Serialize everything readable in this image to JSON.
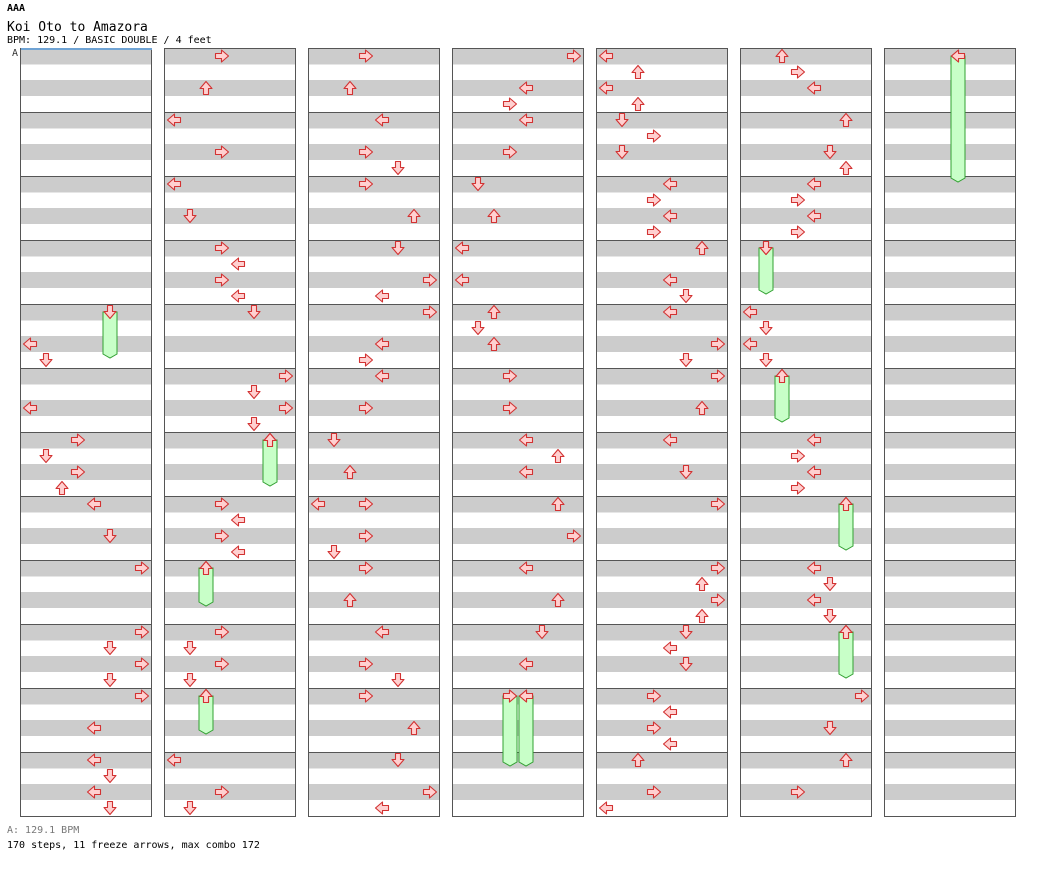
{
  "header": {
    "artist": "AAA",
    "title": "Koi Oto to Amazora",
    "info": "BPM: 129.1 / BASIC DOUBLE / 4 feet"
  },
  "bpm_marker": "A",
  "footer": {
    "bpm_line": "A: 129.1 BPM",
    "stats": "170 steps, 11 freeze arrows, max combo 172"
  },
  "colors": {
    "arrow_fill": "#ffd0d0",
    "arrow_stroke": "#d23232",
    "freeze_fill": "#c8ffc8",
    "freeze_stroke": "#32a032",
    "stripe_gray": "#cccccc",
    "measure_border": "#555555"
  },
  "chart": {
    "columns": 7,
    "measures_per_column": 12,
    "lanes": 8,
    "lane_arrows": [
      "left",
      "down",
      "up",
      "right",
      "left",
      "down",
      "up",
      "right"
    ],
    "notes": [
      {
        "c": 0,
        "b": 18,
        "l": 0
      },
      {
        "c": 0,
        "b": 19,
        "l": 1
      },
      {
        "c": 0,
        "b": 22,
        "l": 0
      },
      {
        "c": 0,
        "b": 24,
        "l": 3
      },
      {
        "c": 0,
        "b": 25,
        "l": 1
      },
      {
        "c": 0,
        "b": 26,
        "l": 3
      },
      {
        "c": 0,
        "b": 27,
        "l": 2
      },
      {
        "c": 0,
        "b": 28,
        "l": 4
      },
      {
        "c": 0,
        "b": 30,
        "l": 5
      },
      {
        "c": 0,
        "b": 32,
        "l": 7
      },
      {
        "c": 0,
        "b": 36,
        "l": 7
      },
      {
        "c": 0,
        "b": 37,
        "l": 5
      },
      {
        "c": 0,
        "b": 38,
        "l": 7
      },
      {
        "c": 0,
        "b": 39,
        "l": 5
      },
      {
        "c": 0,
        "b": 40,
        "l": 7
      },
      {
        "c": 0,
        "b": 42,
        "l": 4
      },
      {
        "c": 0,
        "b": 44,
        "l": 4
      },
      {
        "c": 0,
        "b": 45,
        "l": 5
      },
      {
        "c": 0,
        "b": 46,
        "l": 4
      },
      {
        "c": 0,
        "b": 47,
        "l": 5
      },
      {
        "c": 1,
        "b": 0,
        "l": 3
      },
      {
        "c": 1,
        "b": 2,
        "l": 2
      },
      {
        "c": 1,
        "b": 4,
        "l": 0
      },
      {
        "c": 1,
        "b": 6,
        "l": 3
      },
      {
        "c": 1,
        "b": 8,
        "l": 0
      },
      {
        "c": 1,
        "b": 10,
        "l": 1
      },
      {
        "c": 1,
        "b": 12,
        "l": 3
      },
      {
        "c": 1,
        "b": 13,
        "l": 4
      },
      {
        "c": 1,
        "b": 14,
        "l": 3
      },
      {
        "c": 1,
        "b": 15,
        "l": 4
      },
      {
        "c": 1,
        "b": 16,
        "l": 5
      },
      {
        "c": 1,
        "b": 20,
        "l": 7
      },
      {
        "c": 1,
        "b": 21,
        "l": 5
      },
      {
        "c": 1,
        "b": 22,
        "l": 7
      },
      {
        "c": 1,
        "b": 23,
        "l": 5
      },
      {
        "c": 1,
        "b": 24,
        "l": 6
      },
      {
        "c": 1,
        "b": 28,
        "l": 3
      },
      {
        "c": 1,
        "b": 29,
        "l": 4
      },
      {
        "c": 1,
        "b": 30,
        "l": 3
      },
      {
        "c": 1,
        "b": 31,
        "l": 4
      },
      {
        "c": 1,
        "b": 32,
        "l": 2
      },
      {
        "c": 1,
        "b": 36,
        "l": 3
      },
      {
        "c": 1,
        "b": 37,
        "l": 1
      },
      {
        "c": 1,
        "b": 38,
        "l": 3
      },
      {
        "c": 1,
        "b": 39,
        "l": 1
      },
      {
        "c": 1,
        "b": 40,
        "l": 2
      },
      {
        "c": 1,
        "b": 44,
        "l": 0
      },
      {
        "c": 1,
        "b": 46,
        "l": 3
      },
      {
        "c": 1,
        "b": 47,
        "l": 1
      },
      {
        "c": 2,
        "b": 0,
        "l": 3
      },
      {
        "c": 2,
        "b": 2,
        "l": 2
      },
      {
        "c": 2,
        "b": 4,
        "l": 4
      },
      {
        "c": 2,
        "b": 6,
        "l": 3
      },
      {
        "c": 2,
        "b": 7,
        "l": 5
      },
      {
        "c": 2,
        "b": 8,
        "l": 3
      },
      {
        "c": 2,
        "b": 10,
        "l": 6
      },
      {
        "c": 2,
        "b": 12,
        "l": 5
      },
      {
        "c": 2,
        "b": 14,
        "l": 7
      },
      {
        "c": 2,
        "b": 15,
        "l": 4
      },
      {
        "c": 2,
        "b": 16,
        "l": 7
      },
      {
        "c": 2,
        "b": 18,
        "l": 4
      },
      {
        "c": 2,
        "b": 19,
        "l": 3
      },
      {
        "c": 2,
        "b": 20,
        "l": 4
      },
      {
        "c": 2,
        "b": 22,
        "l": 3
      },
      {
        "c": 2,
        "b": 24,
        "l": 1
      },
      {
        "c": 2,
        "b": 26,
        "l": 2
      },
      {
        "c": 2,
        "b": 28,
        "l": 0
      },
      {
        "c": 2,
        "b": 28,
        "l": 3
      },
      {
        "c": 2,
        "b": 30,
        "l": 3
      },
      {
        "c": 2,
        "b": 31,
        "l": 1
      },
      {
        "c": 2,
        "b": 32,
        "l": 3
      },
      {
        "c": 2,
        "b": 34,
        "l": 2
      },
      {
        "c": 2,
        "b": 36,
        "l": 4
      },
      {
        "c": 2,
        "b": 38,
        "l": 3
      },
      {
        "c": 2,
        "b": 39,
        "l": 5
      },
      {
        "c": 2,
        "b": 40,
        "l": 3
      },
      {
        "c": 2,
        "b": 42,
        "l": 6
      },
      {
        "c": 2,
        "b": 44,
        "l": 5
      },
      {
        "c": 2,
        "b": 46,
        "l": 7
      },
      {
        "c": 2,
        "b": 47,
        "l": 4
      },
      {
        "c": 3,
        "b": 0,
        "l": 7
      },
      {
        "c": 3,
        "b": 2,
        "l": 4
      },
      {
        "c": 3,
        "b": 3,
        "l": 3
      },
      {
        "c": 3,
        "b": 4,
        "l": 4
      },
      {
        "c": 3,
        "b": 6,
        "l": 3
      },
      {
        "c": 3,
        "b": 8,
        "l": 1
      },
      {
        "c": 3,
        "b": 10,
        "l": 2
      },
      {
        "c": 3,
        "b": 12,
        "l": 0
      },
      {
        "c": 3,
        "b": 14,
        "l": 0
      },
      {
        "c": 3,
        "b": 16,
        "l": 2
      },
      {
        "c": 3,
        "b": 17,
        "l": 1
      },
      {
        "c": 3,
        "b": 18,
        "l": 2
      },
      {
        "c": 3,
        "b": 20,
        "l": 3
      },
      {
        "c": 3,
        "b": 22,
        "l": 3
      },
      {
        "c": 3,
        "b": 24,
        "l": 4
      },
      {
        "c": 3,
        "b": 25,
        "l": 6
      },
      {
        "c": 3,
        "b": 26,
        "l": 4
      },
      {
        "c": 3,
        "b": 28,
        "l": 6
      },
      {
        "c": 3,
        "b": 30,
        "l": 7
      },
      {
        "c": 3,
        "b": 32,
        "l": 4
      },
      {
        "c": 3,
        "b": 34,
        "l": 6
      },
      {
        "c": 3,
        "b": 36,
        "l": 5
      },
      {
        "c": 3,
        "b": 38,
        "l": 4
      },
      {
        "c": 3,
        "b": 40,
        "l": 3
      },
      {
        "c": 3,
        "b": 40,
        "l": 4
      },
      {
        "c": 4,
        "b": 0,
        "l": 0
      },
      {
        "c": 4,
        "b": 1,
        "l": 2
      },
      {
        "c": 4,
        "b": 2,
        "l": 0
      },
      {
        "c": 4,
        "b": 3,
        "l": 2
      },
      {
        "c": 4,
        "b": 4,
        "l": 1
      },
      {
        "c": 4,
        "b": 5,
        "l": 3
      },
      {
        "c": 4,
        "b": 6,
        "l": 1
      },
      {
        "c": 4,
        "b": 8,
        "l": 4
      },
      {
        "c": 4,
        "b": 9,
        "l": 3
      },
      {
        "c": 4,
        "b": 10,
        "l": 4
      },
      {
        "c": 4,
        "b": 11,
        "l": 3
      },
      {
        "c": 4,
        "b": 12,
        "l": 6
      },
      {
        "c": 4,
        "b": 14,
        "l": 4
      },
      {
        "c": 4,
        "b": 15,
        "l": 5
      },
      {
        "c": 4,
        "b": 16,
        "l": 4
      },
      {
        "c": 4,
        "b": 18,
        "l": 7
      },
      {
        "c": 4,
        "b": 19,
        "l": 5
      },
      {
        "c": 4,
        "b": 20,
        "l": 7
      },
      {
        "c": 4,
        "b": 22,
        "l": 6
      },
      {
        "c": 4,
        "b": 24,
        "l": 4
      },
      {
        "c": 4,
        "b": 26,
        "l": 5
      },
      {
        "c": 4,
        "b": 28,
        "l": 7
      },
      {
        "c": 4,
        "b": 32,
        "l": 7
      },
      {
        "c": 4,
        "b": 33,
        "l": 6
      },
      {
        "c": 4,
        "b": 34,
        "l": 7
      },
      {
        "c": 4,
        "b": 35,
        "l": 6
      },
      {
        "c": 4,
        "b": 36,
        "l": 5
      },
      {
        "c": 4,
        "b": 37,
        "l": 4
      },
      {
        "c": 4,
        "b": 38,
        "l": 5
      },
      {
        "c": 4,
        "b": 40,
        "l": 3
      },
      {
        "c": 4,
        "b": 41,
        "l": 4
      },
      {
        "c": 4,
        "b": 42,
        "l": 3
      },
      {
        "c": 4,
        "b": 43,
        "l": 4
      },
      {
        "c": 4,
        "b": 44,
        "l": 2
      },
      {
        "c": 4,
        "b": 46,
        "l": 3
      },
      {
        "c": 4,
        "b": 47,
        "l": 0
      },
      {
        "c": 5,
        "b": 0,
        "l": 2
      },
      {
        "c": 5,
        "b": 1,
        "l": 3
      },
      {
        "c": 5,
        "b": 2,
        "l": 4
      },
      {
        "c": 5,
        "b": 4,
        "l": 6
      },
      {
        "c": 5,
        "b": 6,
        "l": 5
      },
      {
        "c": 5,
        "b": 7,
        "l": 6
      },
      {
        "c": 5,
        "b": 8,
        "l": 4
      },
      {
        "c": 5,
        "b": 9,
        "l": 3
      },
      {
        "c": 5,
        "b": 10,
        "l": 4
      },
      {
        "c": 5,
        "b": 11,
        "l": 3
      },
      {
        "c": 5,
        "b": 12,
        "l": 1
      },
      {
        "c": 5,
        "b": 16,
        "l": 0
      },
      {
        "c": 5,
        "b": 17,
        "l": 1
      },
      {
        "c": 5,
        "b": 18,
        "l": 0
      },
      {
        "c": 5,
        "b": 19,
        "l": 1
      },
      {
        "c": 5,
        "b": 20,
        "l": 2
      },
      {
        "c": 5,
        "b": 24,
        "l": 4
      },
      {
        "c": 5,
        "b": 25,
        "l": 3
      },
      {
        "c": 5,
        "b": 26,
        "l": 4
      },
      {
        "c": 5,
        "b": 27,
        "l": 3
      },
      {
        "c": 5,
        "b": 28,
        "l": 6
      },
      {
        "c": 5,
        "b": 32,
        "l": 4
      },
      {
        "c": 5,
        "b": 33,
        "l": 5
      },
      {
        "c": 5,
        "b": 34,
        "l": 4
      },
      {
        "c": 5,
        "b": 35,
        "l": 5
      },
      {
        "c": 5,
        "b": 36,
        "l": 6
      },
      {
        "c": 5,
        "b": 40,
        "l": 7
      },
      {
        "c": 5,
        "b": 42,
        "l": 5
      },
      {
        "c": 5,
        "b": 44,
        "l": 6
      },
      {
        "c": 5,
        "b": 46,
        "l": 3
      },
      {
        "c": 6,
        "b": 0,
        "l": 4
      }
    ],
    "freezes": [
      {
        "c": 0,
        "b": 16,
        "e": 18.5,
        "l": 5
      },
      {
        "c": 1,
        "b": 24,
        "e": 26.5,
        "l": 6
      },
      {
        "c": 1,
        "b": 32,
        "e": 34,
        "l": 2
      },
      {
        "c": 1,
        "b": 40,
        "e": 42,
        "l": 2
      },
      {
        "c": 3,
        "b": 40,
        "e": 44,
        "l": 3
      },
      {
        "c": 3,
        "b": 40,
        "e": 44,
        "l": 4
      },
      {
        "c": 5,
        "b": 12,
        "e": 14.5,
        "l": 1
      },
      {
        "c": 5,
        "b": 20,
        "e": 22.5,
        "l": 2
      },
      {
        "c": 5,
        "b": 28,
        "e": 30.5,
        "l": 6
      },
      {
        "c": 5,
        "b": 36,
        "e": 38.5,
        "l": 6
      },
      {
        "c": 6,
        "b": 0,
        "e": 7.5,
        "l": 4
      }
    ]
  }
}
